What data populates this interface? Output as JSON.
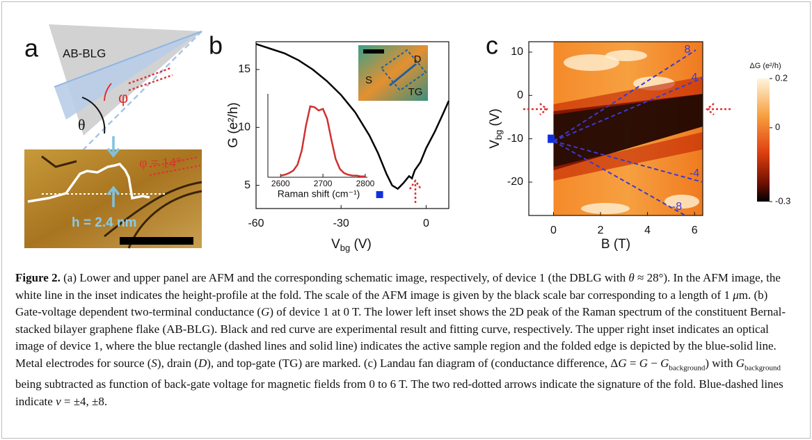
{
  "panel_a": {
    "label": "a",
    "schematic_label": "AB-BLG",
    "phi": "φ",
    "theta": "θ",
    "phi_value": "φ = 14°",
    "height": "h = 2.4 nm"
  },
  "chart_data": [
    {
      "type": "line",
      "panel_label": "b",
      "xlabel": [
        "V",
        "bg",
        " (V)"
      ],
      "ylabel": "G (e²/h)",
      "x": [
        -60,
        -55,
        -50,
        -45,
        -40,
        -35,
        -30,
        -25,
        -20,
        -17,
        -14,
        -12,
        -10,
        -8,
        -6,
        -5,
        -4,
        -2,
        0,
        3,
        6,
        8
      ],
      "series": [
        {
          "color": "#000000",
          "values": [
            17.2,
            16.8,
            16.4,
            15.8,
            15.0,
            14.0,
            12.8,
            11.3,
            9.3,
            7.8,
            6.0,
            5.0,
            4.7,
            5.2,
            5.8,
            5.6,
            6.3,
            7.0,
            8.2,
            9.6,
            11.2,
            12.3
          ]
        }
      ],
      "markers": [
        {
          "x": -16.4,
          "y": 4.2,
          "color": "#1030e0"
        }
      ],
      "xlim": [
        -60,
        8
      ],
      "ylim": [
        3,
        17.4
      ],
      "xticks": [
        -60,
        -30,
        0
      ],
      "yticks": [
        5,
        10,
        15
      ],
      "annotations": [
        "S",
        "D",
        "TG"
      ]
    },
    {
      "type": "line",
      "xlabel": "Raman shift (cm⁻¹)",
      "x": [
        2600,
        2610,
        2620,
        2630,
        2640,
        2650,
        2660,
        2670,
        2680,
        2690,
        2700,
        2710,
        2720,
        2730,
        2740,
        2750,
        2760,
        2770,
        2780,
        2790,
        2800
      ],
      "series": [
        {
          "color": "#d03030",
          "values": [
            0.02,
            0.03,
            0.05,
            0.08,
            0.15,
            0.32,
            0.62,
            0.85,
            0.84,
            0.8,
            0.82,
            0.7,
            0.45,
            0.22,
            0.1,
            0.05,
            0.03,
            0.02,
            0.02,
            0.01,
            0.01
          ]
        }
      ],
      "xlim": [
        2570,
        2805
      ],
      "ylim": [
        0,
        1
      ],
      "xticks": [
        2600,
        2700,
        2800
      ]
    },
    {
      "type": "heatmap",
      "panel_label": "c",
      "xlabel": "B (T)",
      "ylabel": [
        "V",
        "bg",
        " (V)"
      ],
      "xlim": [
        -1.05,
        6.35
      ],
      "ylim": [
        -27.7,
        12.4
      ],
      "xticks": [
        0,
        2,
        4,
        6
      ],
      "yticks": [
        10,
        0,
        -10,
        -20
      ],
      "markers": [
        {
          "x": -0.1,
          "y": -10,
          "color": "#1030e0"
        }
      ],
      "annotations": [
        "8",
        "4",
        "-4",
        "-8"
      ],
      "colorbar": {
        "label": "ΔG (e²/h)",
        "lim": [
          -0.3,
          0.2
        ],
        "ticks": [
          0.2,
          0,
          -0.3
        ]
      }
    }
  ],
  "caption": {
    "label": "Figure 2.",
    "runs": [
      " (a) Lower and upper panel are AFM and the corresponding schematic image, respectively, of device 1 (the DBLG with ",
      "θ",
      " ≈ 28°). In the AFM image, the white line in the inset indicates the height-profile at the fold. The scale of the AFM image is given by the black scale bar corresponding to a length of 1 ",
      "μ",
      "m. (b) Gate-voltage dependent two-terminal conductance (",
      "G",
      ") of device 1 at 0 T. The lower left inset shows the 2D peak of the Raman spectrum of the constituent Bernal-stacked bilayer graphene flake (AB-BLG). Black and red curve are experimental result and fitting curve, respectively. The upper right inset indicates an optical image of device 1, where the blue rectangle (dashed lines and solid line) indicates the active sample region and the folded edge is depicted by the blue-solid line. Metal electrodes for source (",
      "S",
      "), drain (",
      "D",
      "), and top-gate (TG) are marked. (c) Landau fan diagram of (conductance difference, Δ",
      "G",
      " = ",
      "G",
      " − ",
      "G",
      "background",
      ") with ",
      "G",
      "background",
      " being subtracted as function of back-gate voltage for magnetic fields from 0 to 6 T. The two red-dotted arrows indicate the signature of the fold. Blue-dashed lines indicate ",
      "ν",
      " = ±4, ±8."
    ]
  }
}
